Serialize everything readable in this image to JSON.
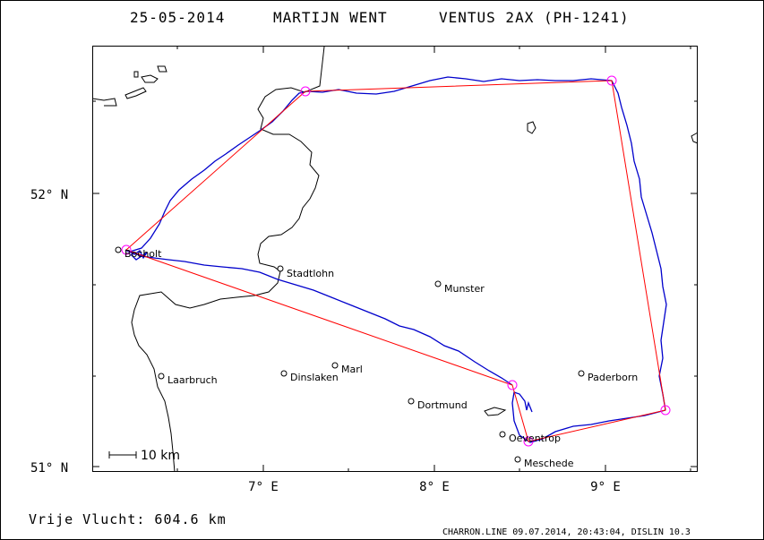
{
  "header": {
    "date": "25-05-2014",
    "pilot": "MARTIJN WENT",
    "glider": "VENTUS 2AX (PH-1241)"
  },
  "axes": {
    "y_labels": [
      "52° N",
      "51° N"
    ],
    "x_labels": [
      "7° E",
      "8° E",
      "9° E"
    ]
  },
  "scale_bar": {
    "label": "10 km"
  },
  "cities": [
    {
      "name": "Stadtlohn"
    },
    {
      "name": "Munster"
    },
    {
      "name": "Marl"
    },
    {
      "name": "Dinslaken"
    },
    {
      "name": "Laarbruch"
    },
    {
      "name": "Dortmund"
    },
    {
      "name": "Paderborn"
    },
    {
      "name": "Oeventrop"
    },
    {
      "name": "Meschede"
    },
    {
      "name": "Bocholt"
    }
  ],
  "footer": {
    "result": "Vrije Vlucht:  604.6 km",
    "software": "CHARRON.LINE 09.07.2014, 20:43:04, DISLIN 10.3"
  },
  "colors": {
    "task_line": "#ff0000",
    "track": "#0000cc",
    "turnpoint": "#ff00ff",
    "map": "#000000"
  }
}
